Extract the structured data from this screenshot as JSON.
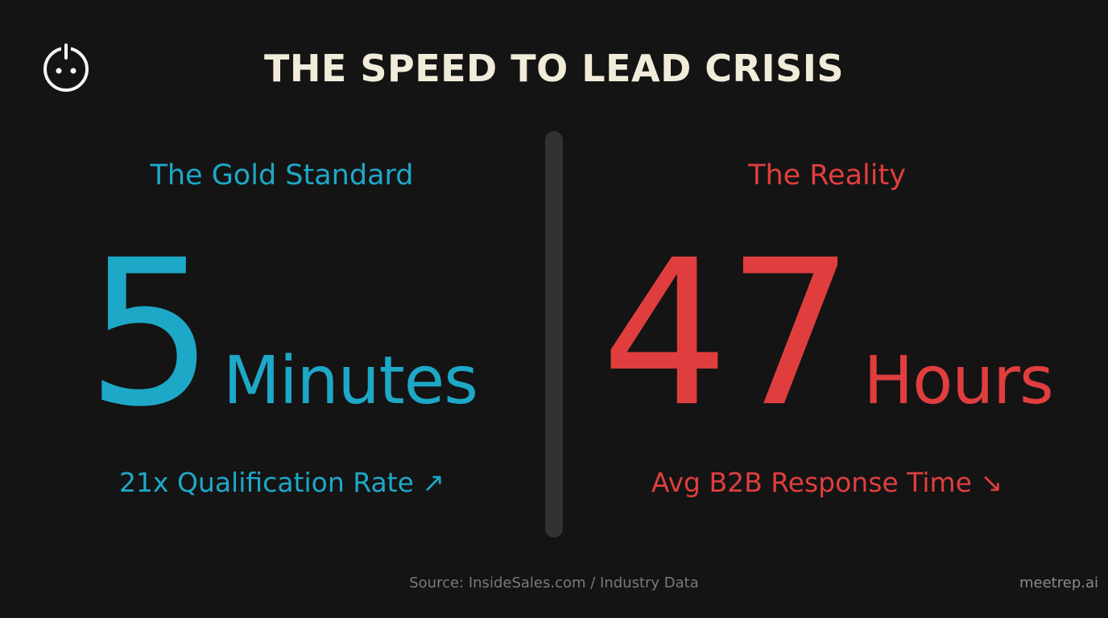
{
  "header": {
    "title": "THE SPEED TO LEAD CRISIS"
  },
  "panels": [
    {
      "heading": "The Gold Standard",
      "number": 5,
      "unit": "Minutes",
      "caption": "21x Qualification Rate ↗",
      "color": "#1ea8c8"
    },
    {
      "heading": "The Reality",
      "number": 47,
      "unit": "Hours",
      "caption": "Avg B2B Response Time ↘",
      "color": "#e03e3e"
    }
  ],
  "footer": {
    "source": "Source: InsideSales.com / Industry Data",
    "brand": "meetrep.ai"
  }
}
